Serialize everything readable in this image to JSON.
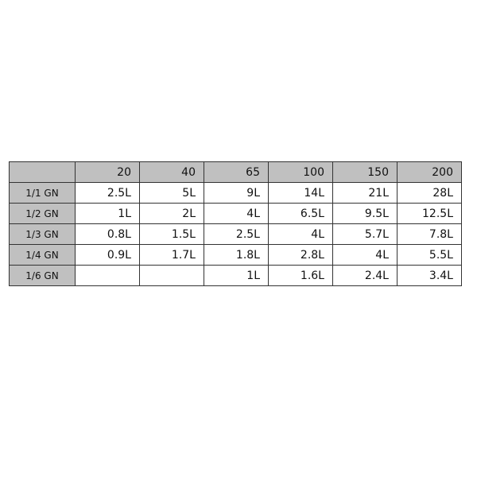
{
  "table": {
    "header_color": "#c0c0c0",
    "columns": [
      "",
      "20",
      "40",
      "65",
      "100",
      "150",
      "200"
    ],
    "rows": [
      {
        "label": "1/1 GN",
        "cells": [
          "2.5L",
          "5L",
          "9L",
          "14L",
          "21L",
          "28L"
        ]
      },
      {
        "label": "1/2 GN",
        "cells": [
          "1L",
          "2L",
          "4L",
          "6.5L",
          "9.5L",
          "12.5L"
        ]
      },
      {
        "label": "1/3 GN",
        "cells": [
          "0.8L",
          "1.5L",
          "2.5L",
          "4L",
          "5.7L",
          "7.8L"
        ]
      },
      {
        "label": "1/4 GN",
        "cells": [
          "0.9L",
          "1.7L",
          "1.8L",
          "2.8L",
          "4L",
          "5.5L"
        ]
      },
      {
        "label": "1/6 GN",
        "cells": [
          "",
          "",
          "1L",
          "1.6L",
          "2.4L",
          "3.4L"
        ]
      }
    ]
  }
}
